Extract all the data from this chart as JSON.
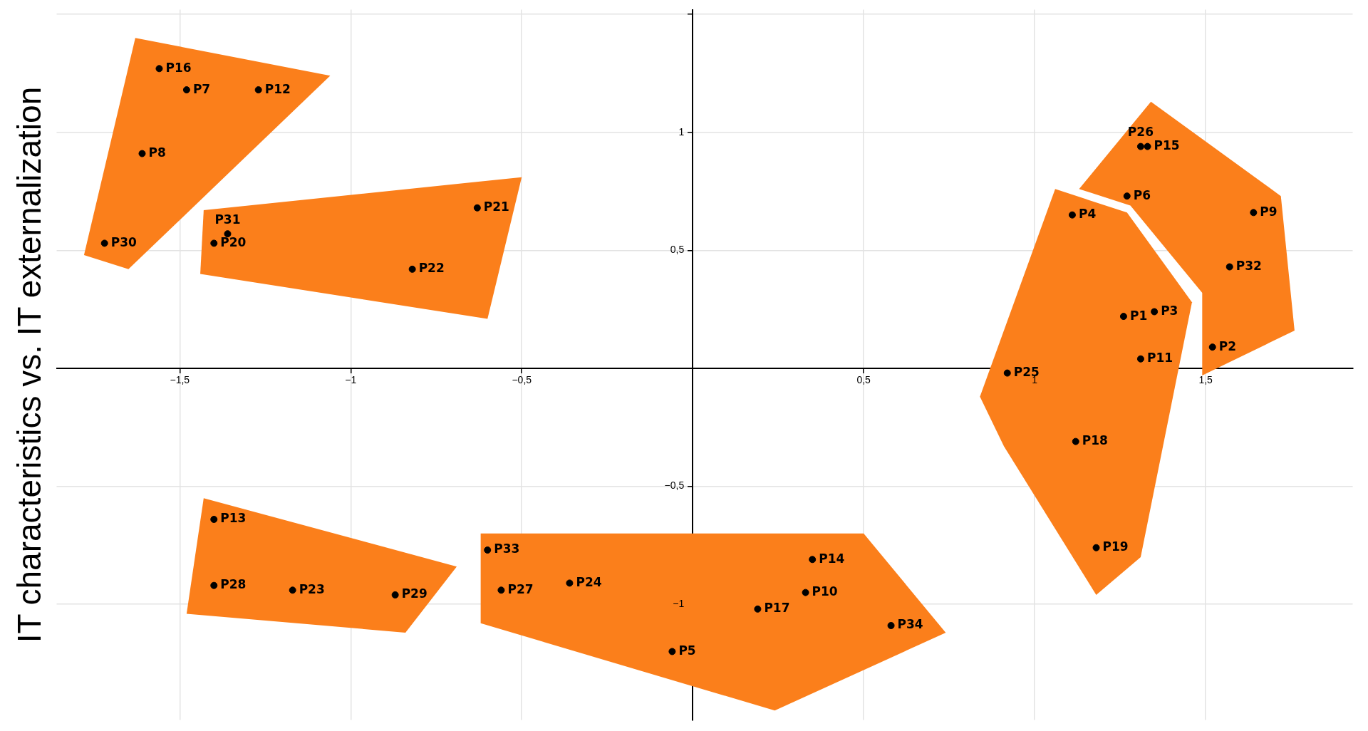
{
  "chart_data": {
    "type": "scatter",
    "ylabel": "IT characteristics vs. IT externalization",
    "xlim": [
      -1.86,
      1.93
    ],
    "ylim": [
      -1.49,
      1.52
    ],
    "xticks": [
      {
        "value": -1.5,
        "label": "−1,5"
      },
      {
        "value": -1,
        "label": "−1"
      },
      {
        "value": -0.5,
        "label": "−0,5"
      },
      {
        "value": 0.5,
        "label": "0,5"
      },
      {
        "value": 1,
        "label": "1"
      },
      {
        "value": 1.5,
        "label": "1,5"
      }
    ],
    "yticks": [
      {
        "value": -1,
        "label": "−1"
      },
      {
        "value": -0.5,
        "label": "−0,5"
      },
      {
        "value": 0.5,
        "label": "0,5"
      },
      {
        "value": 1,
        "label": "1"
      },
      {
        "value": 1.5,
        "label": null
      }
    ],
    "grid": true,
    "series": [
      {
        "type": "area",
        "color": "#fb7f1b",
        "x": [
          -1.63,
          -1.06,
          -1.65,
          -1.78
        ],
        "values": [
          1.4,
          1.24,
          0.42,
          0.48
        ]
      },
      {
        "type": "area",
        "color": "#fb7f1b",
        "x": [
          -1.43,
          -0.5,
          -0.6,
          -1.44
        ],
        "values": [
          0.67,
          0.81,
          0.21,
          0.4
        ]
      },
      {
        "type": "area",
        "color": "#fb7f1b",
        "x": [
          1.34,
          1.72,
          1.76,
          1.49,
          1.49,
          1.28,
          1.13
        ],
        "values": [
          1.13,
          0.73,
          0.16,
          -0.03,
          0.32,
          0.69,
          0.76
        ]
      },
      {
        "type": "area",
        "color": "#fb7f1b",
        "x": [
          1.06,
          1.27,
          1.46,
          1.31,
          1.18,
          0.91,
          0.84
        ],
        "values": [
          0.76,
          0.66,
          0.28,
          -0.8,
          -0.96,
          -0.33,
          -0.12
        ]
      },
      {
        "type": "area",
        "color": "#fb7f1b",
        "x": [
          -1.43,
          -0.69,
          -0.84,
          -1.48
        ],
        "values": [
          -0.55,
          -0.84,
          -1.12,
          -1.04
        ]
      },
      {
        "type": "area",
        "color": "#fb7f1b",
        "x": [
          -0.62,
          0.5,
          0.74,
          0.24,
          -0.62
        ],
        "values": [
          -0.7,
          -0.7,
          -1.12,
          -1.45,
          -1.08
        ]
      },
      {
        "marker": "circle",
        "color": "#000000",
        "x": [
          1.26,
          1.52,
          1.35,
          1.11,
          -0.06,
          1.27,
          -1.48,
          -1.61,
          1.64,
          0.33,
          1.31,
          -1.27,
          -1.4,
          0.35,
          1.33,
          -1.56,
          0.19,
          1.12,
          1.18,
          -1.4,
          -0.63,
          -0.82,
          -1.17,
          -0.36,
          0.92,
          1.31,
          -0.56,
          -1.4,
          -0.87,
          -1.72,
          -1.36,
          1.57,
          -0.6,
          0.58
        ],
        "values": [
          0.22,
          0.09,
          0.24,
          0.65,
          -1.2,
          0.73,
          1.18,
          0.91,
          0.66,
          -0.95,
          0.04,
          1.18,
          -0.64,
          -0.81,
          0.94,
          1.27,
          -1.02,
          -0.31,
          -0.76,
          0.53,
          0.68,
          0.42,
          -0.94,
          -0.91,
          -0.02,
          0.94,
          -0.94,
          -0.92,
          -0.96,
          0.53,
          0.57,
          0.43,
          -0.77,
          -1.09
        ]
      }
    ],
    "annotations": [
      {
        "text": "P1",
        "x": 1.26,
        "y": 0.22
      },
      {
        "text": "P2",
        "x": 1.52,
        "y": 0.09
      },
      {
        "text": "P3",
        "x": 1.35,
        "y": 0.24
      },
      {
        "text": "P4",
        "x": 1.11,
        "y": 0.65
      },
      {
        "text": "P5",
        "x": -0.06,
        "y": -1.2
      },
      {
        "text": "P6",
        "x": 1.27,
        "y": 0.73
      },
      {
        "text": "P7",
        "x": -1.48,
        "y": 1.18
      },
      {
        "text": "P8",
        "x": -1.61,
        "y": 0.91
      },
      {
        "text": "P9",
        "x": 1.64,
        "y": 0.66
      },
      {
        "text": "P10",
        "x": 0.33,
        "y": -0.95
      },
      {
        "text": "P11",
        "x": 1.31,
        "y": 0.04
      },
      {
        "text": "P12",
        "x": -1.27,
        "y": 1.18
      },
      {
        "text": "P13",
        "x": -1.4,
        "y": -0.64
      },
      {
        "text": "P14",
        "x": 0.35,
        "y": -0.81
      },
      {
        "text": "P15",
        "x": 1.33,
        "y": 0.94
      },
      {
        "text": "P16",
        "x": -1.56,
        "y": 1.27
      },
      {
        "text": "P17",
        "x": 0.19,
        "y": -1.02
      },
      {
        "text": "P18",
        "x": 1.12,
        "y": -0.31
      },
      {
        "text": "P19",
        "x": 1.18,
        "y": -0.76
      },
      {
        "text": "P20",
        "x": -1.4,
        "y": 0.53
      },
      {
        "text": "P21",
        "x": -0.63,
        "y": 0.68
      },
      {
        "text": "P22",
        "x": -0.82,
        "y": 0.42
      },
      {
        "text": "P23",
        "x": -1.17,
        "y": -0.94
      },
      {
        "text": "P24",
        "x": -0.36,
        "y": -0.91
      },
      {
        "text": "P25",
        "x": 0.92,
        "y": -0.02
      },
      {
        "text": "P26",
        "x": 1.31,
        "y": 0.94
      },
      {
        "text": "P27",
        "x": -0.56,
        "y": -0.94
      },
      {
        "text": "P28",
        "x": -1.4,
        "y": -0.92
      },
      {
        "text": "P29",
        "x": -0.87,
        "y": -0.96
      },
      {
        "text": "P30",
        "x": -1.72,
        "y": 0.53
      },
      {
        "text": "P31",
        "x": -1.36,
        "y": 0.57
      },
      {
        "text": "P32",
        "x": 1.57,
        "y": 0.43
      },
      {
        "text": "P33",
        "x": -0.6,
        "y": -0.77
      },
      {
        "text": "P34",
        "x": 0.58,
        "y": -1.09
      }
    ]
  }
}
